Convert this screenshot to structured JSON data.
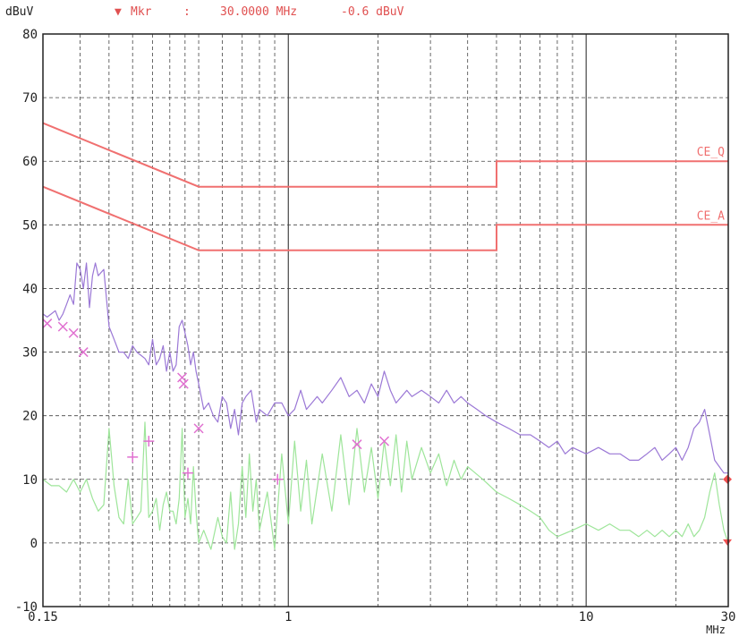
{
  "header": {
    "y_unit": "dBuV",
    "marker_symbol": "▼",
    "marker_label": "Mkr",
    "marker_sep": ":",
    "marker_freq": "30.0000 MHz",
    "marker_level": "-0.6 dBuV"
  },
  "colors": {
    "limit": "#f07070",
    "peak": "#9b78d6",
    "average": "#9ee59a",
    "marker_cross": "#e070d0",
    "marker_red": "#f05050",
    "grid": "#444444"
  },
  "chart_data": {
    "type": "line",
    "title": "",
    "xlabel": "MHz",
    "ylabel": "dBuV",
    "x_scale": "log",
    "xlim": [
      0.15,
      30
    ],
    "ylim": [
      -10,
      80
    ],
    "x_tick_labels": [
      {
        "value": 0.15,
        "label": "0.15"
      },
      {
        "value": 1,
        "label": "1"
      },
      {
        "value": 10,
        "label": "10"
      },
      {
        "value": 30,
        "label": "30"
      }
    ],
    "y_ticks": [
      -10,
      0,
      10,
      20,
      30,
      40,
      50,
      60,
      70,
      80
    ],
    "grid": true,
    "limit_lines": [
      {
        "name": "CE_Q",
        "points": [
          [
            0.15,
            66
          ],
          [
            0.5,
            56
          ],
          [
            5,
            56
          ],
          [
            5,
            60
          ],
          [
            30,
            60
          ]
        ]
      },
      {
        "name": "CE_A",
        "points": [
          [
            0.15,
            56
          ],
          [
            0.5,
            46
          ],
          [
            5,
            46
          ],
          [
            5,
            50
          ],
          [
            30,
            50
          ]
        ]
      }
    ],
    "series": [
      {
        "key": "peak",
        "x": [
          0.15,
          0.155,
          0.16,
          0.165,
          0.17,
          0.175,
          0.18,
          0.185,
          0.19,
          0.195,
          0.2,
          0.205,
          0.21,
          0.215,
          0.22,
          0.225,
          0.23,
          0.24,
          0.25,
          0.26,
          0.27,
          0.28,
          0.29,
          0.3,
          0.31,
          0.32,
          0.33,
          0.34,
          0.35,
          0.36,
          0.37,
          0.38,
          0.39,
          0.4,
          0.41,
          0.42,
          0.43,
          0.44,
          0.45,
          0.46,
          0.47,
          0.48,
          0.49,
          0.5,
          0.52,
          0.54,
          0.56,
          0.58,
          0.6,
          0.62,
          0.64,
          0.66,
          0.68,
          0.7,
          0.72,
          0.75,
          0.78,
          0.8,
          0.85,
          0.9,
          0.95,
          1.0,
          1.05,
          1.1,
          1.15,
          1.2,
          1.25,
          1.3,
          1.4,
          1.5,
          1.6,
          1.7,
          1.8,
          1.9,
          2.0,
          2.1,
          2.2,
          2.3,
          2.4,
          2.5,
          2.6,
          2.8,
          3.0,
          3.2,
          3.4,
          3.6,
          3.8,
          4.0,
          4.3,
          4.6,
          5.0,
          5.5,
          6.0,
          6.5,
          7.0,
          7.5,
          8.0,
          8.5,
          9.0,
          10.0,
          11.0,
          12.0,
          13.0,
          14.0,
          15.0,
          16.0,
          17.0,
          18.0,
          19.0,
          20.0,
          21.0,
          22.0,
          23.0,
          24.0,
          25.0,
          26.0,
          27.0,
          28.0,
          29.0,
          30.0
        ],
        "y": [
          36,
          35.5,
          36,
          36.5,
          35,
          36,
          37.5,
          39,
          37.5,
          44,
          43,
          40,
          44,
          37,
          42,
          44,
          42,
          43,
          34,
          32,
          30,
          30,
          29,
          31,
          30,
          29.5,
          29,
          28,
          32,
          28,
          29,
          31,
          27,
          30,
          27,
          28,
          34,
          35,
          33,
          31,
          28,
          30,
          27,
          25,
          21,
          22,
          20,
          19,
          23,
          22,
          18,
          21,
          17,
          22,
          23,
          24,
          19,
          21,
          20,
          22,
          22,
          20,
          21,
          24,
          21,
          22,
          23,
          22,
          24,
          26,
          23,
          24,
          22,
          25,
          23,
          27,
          24,
          22,
          23,
          24,
          23,
          24,
          23,
          22,
          24,
          22,
          23,
          22,
          21,
          20,
          19,
          18,
          17,
          17,
          16,
          15,
          16,
          14,
          15,
          14,
          15,
          14,
          14,
          13,
          13,
          14,
          15,
          13,
          14,
          15,
          13,
          15,
          18,
          19,
          21,
          17,
          13,
          12,
          11,
          11
        ]
      },
      {
        "key": "average",
        "x": [
          0.15,
          0.16,
          0.17,
          0.18,
          0.19,
          0.2,
          0.21,
          0.22,
          0.23,
          0.24,
          0.25,
          0.26,
          0.27,
          0.28,
          0.29,
          0.3,
          0.31,
          0.32,
          0.33,
          0.34,
          0.35,
          0.36,
          0.37,
          0.38,
          0.39,
          0.4,
          0.41,
          0.42,
          0.43,
          0.44,
          0.45,
          0.46,
          0.47,
          0.48,
          0.49,
          0.5,
          0.52,
          0.55,
          0.58,
          0.6,
          0.62,
          0.64,
          0.66,
          0.68,
          0.7,
          0.72,
          0.74,
          0.76,
          0.78,
          0.8,
          0.85,
          0.9,
          0.95,
          1.0,
          1.05,
          1.1,
          1.15,
          1.2,
          1.3,
          1.4,
          1.5,
          1.6,
          1.7,
          1.8,
          1.9,
          2.0,
          2.1,
          2.2,
          2.3,
          2.4,
          2.5,
          2.6,
          2.8,
          3.0,
          3.2,
          3.4,
          3.6,
          3.8,
          4.0,
          4.5,
          5.0,
          5.5,
          6.0,
          6.5,
          7.0,
          7.5,
          8.0,
          9.0,
          10.0,
          11.0,
          12.0,
          13.0,
          14.0,
          15.0,
          16.0,
          17.0,
          18.0,
          19.0,
          20.0,
          21.0,
          22.0,
          23.0,
          24.0,
          25.0,
          26.0,
          27.0,
          28.0,
          29.0,
          30.0
        ],
        "y": [
          10,
          9,
          9,
          8,
          10,
          8,
          10,
          7,
          5,
          6,
          18,
          9,
          4,
          3,
          10,
          3,
          4,
          5,
          19,
          4,
          5,
          7,
          2,
          6,
          8,
          5,
          5,
          3,
          7,
          18,
          4,
          7,
          3,
          12,
          5,
          0,
          2,
          -1,
          4,
          1,
          0,
          8,
          -1,
          3,
          12,
          4,
          14,
          5,
          10,
          2,
          8,
          -1,
          14,
          3,
          16,
          5,
          13,
          3,
          14,
          5,
          17,
          6,
          18,
          8,
          15,
          7,
          16,
          9,
          17,
          8,
          16,
          10,
          15,
          11,
          14,
          9,
          13,
          10,
          12,
          10,
          8,
          7,
          6,
          5,
          4,
          2,
          1,
          2,
          3,
          2,
          3,
          2,
          2,
          1,
          2,
          1,
          2,
          1,
          2,
          1,
          3,
          1,
          2,
          4,
          8,
          11,
          6,
          2,
          0
        ]
      }
    ],
    "quasi_peak_markers": [
      {
        "x": 0.155,
        "y": 34.5
      },
      {
        "x": 0.175,
        "y": 34
      },
      {
        "x": 0.19,
        "y": 33
      },
      {
        "x": 0.205,
        "y": 30
      },
      {
        "x": 0.44,
        "y": 26
      },
      {
        "x": 0.445,
        "y": 25
      },
      {
        "x": 0.5,
        "y": 18
      },
      {
        "x": 1.7,
        "y": 15.5
      },
      {
        "x": 2.1,
        "y": 16
      }
    ],
    "average_markers": [
      {
        "x": 0.3,
        "y": 13.5
      },
      {
        "x": 0.34,
        "y": 16
      },
      {
        "x": 0.46,
        "y": 11
      },
      {
        "x": 0.92,
        "y": 10
      }
    ],
    "end_markers": [
      {
        "x": 30,
        "y": 10,
        "shape": "diamond"
      },
      {
        "x": 30,
        "y": 0,
        "shape": "triangle"
      }
    ]
  }
}
